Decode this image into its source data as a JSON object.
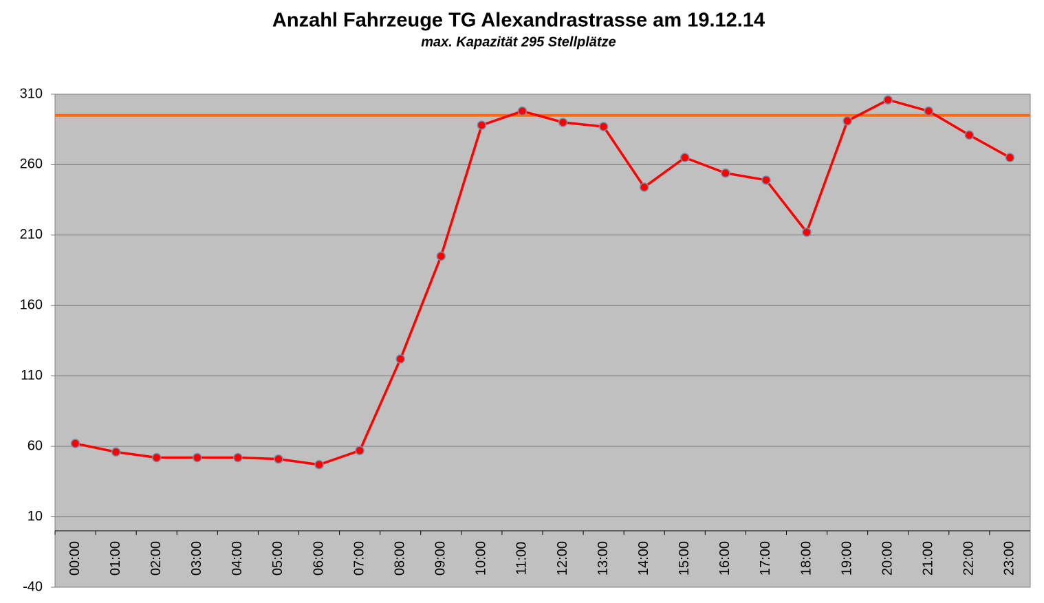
{
  "chart_data": {
    "type": "line",
    "title": "Anzahl Fahrzeuge TG Alexandrastrasse am 19.12.14",
    "subtitle": "max. Kapazität 295 Stellplätze",
    "categories": [
      "00:00",
      "01:00",
      "02:00",
      "03:00",
      "04:00",
      "05:00",
      "06:00",
      "07:00",
      "08:00",
      "09:00",
      "10:00",
      "11:00",
      "12:00",
      "13:00",
      "14:00",
      "15:00",
      "16:00",
      "17:00",
      "18:00",
      "19:00",
      "20:00",
      "21:00",
      "22:00",
      "23:00"
    ],
    "values": [
      62,
      56,
      52,
      52,
      52,
      51,
      47,
      57,
      122,
      195,
      288,
      298,
      290,
      287,
      244,
      265,
      254,
      249,
      212,
      291,
      306,
      298,
      281,
      265
    ],
    "color": "#ff0000",
    "capacity": 295,
    "capacity_color": "#ff6a10",
    "ylim": [
      -40,
      310
    ],
    "yticks": [
      -40,
      10,
      60,
      110,
      160,
      210,
      260,
      310
    ],
    "grid": true
  }
}
